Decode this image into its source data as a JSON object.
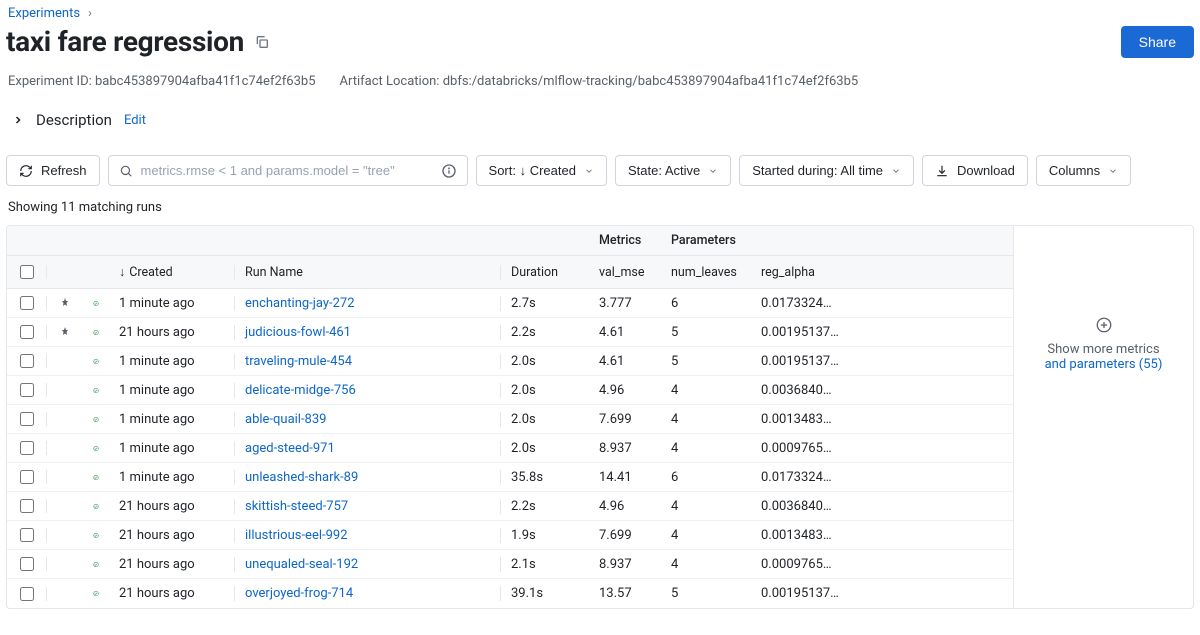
{
  "breadcrumb": {
    "parent": "Experiments"
  },
  "title": "taxi fare regression",
  "share_label": "Share",
  "meta": {
    "exp_id_label": "Experiment ID:",
    "exp_id": "babc453897904afba41f1c74ef2f63b5",
    "artifact_label": "Artifact Location:",
    "artifact": "dbfs:/databricks/mlflow-tracking/babc453897904afba41f1c74ef2f63b5"
  },
  "description": {
    "label": "Description",
    "edit": "Edit"
  },
  "toolbar": {
    "refresh": "Refresh",
    "search_placeholder": "metrics.rmse < 1 and params.model = \"tree\"",
    "sort_full": "Sort: ↓ Created",
    "state": "State: Active",
    "started": "Started during: All time",
    "download": "Download",
    "columns": "Columns"
  },
  "result_count": "Showing 11 matching runs",
  "headers": {
    "metrics_group": "Metrics",
    "params_group": "Parameters",
    "created": "Created",
    "run_name": "Run Name",
    "duration": "Duration",
    "val_mse": "val_mse",
    "num_leaves": "num_leaves",
    "reg_alpha": "reg_alpha"
  },
  "rows": [
    {
      "pinned": true,
      "created": "1 minute ago",
      "name": "enchanting-jay-272",
      "duration": "2.7s",
      "val_mse": "3.777",
      "num_leaves": "6",
      "reg_alpha": "0.0173324…"
    },
    {
      "pinned": true,
      "created": "21 hours ago",
      "name": "judicious-fowl-461",
      "duration": "2.2s",
      "val_mse": "4.61",
      "num_leaves": "5",
      "reg_alpha": "0.00195137…"
    },
    {
      "pinned": false,
      "created": "1 minute ago",
      "name": "traveling-mule-454",
      "duration": "2.0s",
      "val_mse": "4.61",
      "num_leaves": "5",
      "reg_alpha": "0.00195137…"
    },
    {
      "pinned": false,
      "created": "1 minute ago",
      "name": "delicate-midge-756",
      "duration": "2.0s",
      "val_mse": "4.96",
      "num_leaves": "4",
      "reg_alpha": "0.0036840…"
    },
    {
      "pinned": false,
      "created": "1 minute ago",
      "name": "able-quail-839",
      "duration": "2.0s",
      "val_mse": "7.699",
      "num_leaves": "4",
      "reg_alpha": "0.0013483…"
    },
    {
      "pinned": false,
      "created": "1 minute ago",
      "name": "aged-steed-971",
      "duration": "2.0s",
      "val_mse": "8.937",
      "num_leaves": "4",
      "reg_alpha": "0.0009765…"
    },
    {
      "pinned": false,
      "created": "1 minute ago",
      "name": "unleashed-shark-89",
      "duration": "35.8s",
      "val_mse": "14.41",
      "num_leaves": "6",
      "reg_alpha": "0.0173324…"
    },
    {
      "pinned": false,
      "created": "21 hours ago",
      "name": "skittish-steed-757",
      "duration": "2.2s",
      "val_mse": "4.96",
      "num_leaves": "4",
      "reg_alpha": "0.0036840…"
    },
    {
      "pinned": false,
      "created": "21 hours ago",
      "name": "illustrious-eel-992",
      "duration": "1.9s",
      "val_mse": "7.699",
      "num_leaves": "4",
      "reg_alpha": "0.0013483…"
    },
    {
      "pinned": false,
      "created": "21 hours ago",
      "name": "unequaled-seal-192",
      "duration": "2.1s",
      "val_mse": "8.937",
      "num_leaves": "4",
      "reg_alpha": "0.0009765…"
    },
    {
      "pinned": false,
      "created": "21 hours ago",
      "name": "overjoyed-frog-714",
      "duration": "39.1s",
      "val_mse": "13.57",
      "num_leaves": "5",
      "reg_alpha": "0.00195137…"
    }
  ],
  "side": {
    "line1": "Show more metrics",
    "line2": "and parameters (55)"
  },
  "colors": {
    "link": "#0e66c9",
    "success": "#1a8f3c",
    "border": "#d0d5dd"
  }
}
